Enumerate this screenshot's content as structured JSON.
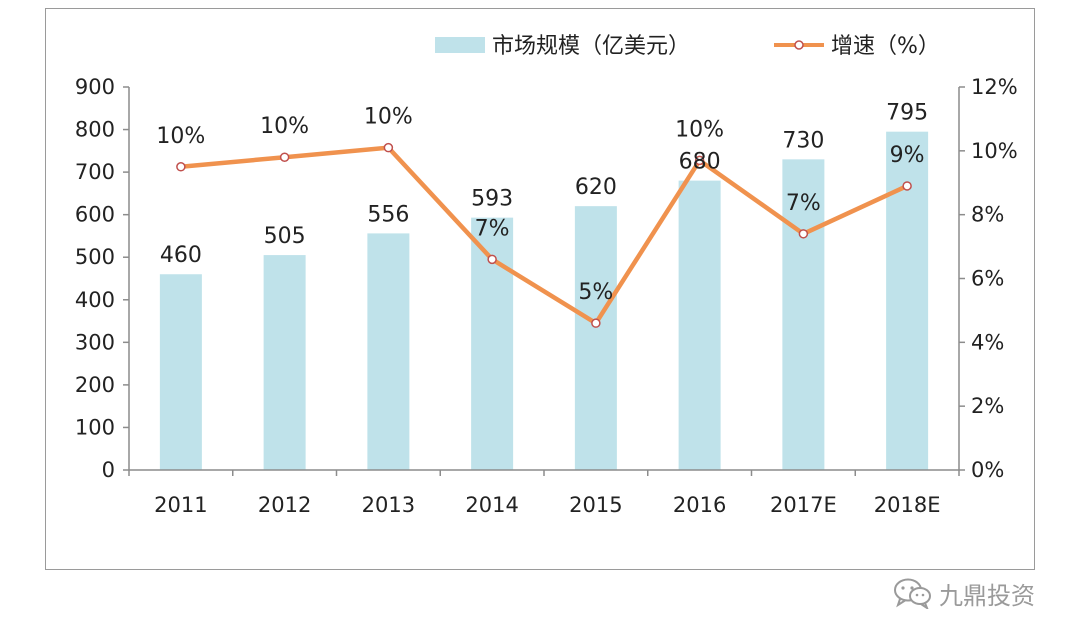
{
  "chart_data": {
    "type": "bar+line",
    "categories": [
      "2011",
      "2012",
      "2013",
      "2014",
      "2015",
      "2016",
      "2017E",
      "2018E"
    ],
    "series": [
      {
        "name": "市场规模（亿美元）",
        "type": "bar",
        "axis": "left",
        "values": [
          460,
          505,
          556,
          593,
          620,
          680,
          730,
          795
        ],
        "labels": [
          "460",
          "505",
          "556",
          "593",
          "620",
          "680",
          "730",
          "795"
        ]
      },
      {
        "name": "增速（%）",
        "type": "line",
        "axis": "right",
        "values": [
          9.5,
          9.8,
          10.1,
          6.6,
          4.6,
          9.7,
          7.4,
          8.9
        ],
        "labels": [
          "10%",
          "10%",
          "10%",
          "7%",
          "5%",
          "10%",
          "7%",
          "9%"
        ]
      }
    ],
    "left_axis": {
      "min": 0,
      "max": 900,
      "ticks": [
        "0",
        "100",
        "200",
        "300",
        "400",
        "500",
        "600",
        "700",
        "800",
        "900"
      ]
    },
    "right_axis": {
      "min": 0,
      "max": 12,
      "ticks": [
        "0%",
        "2%",
        "4%",
        "6%",
        "8%",
        "10%",
        "12%"
      ]
    },
    "legend_position": "top-right",
    "grid": false
  },
  "colors": {
    "bar": "#bfe2ea",
    "line": "#f0924e",
    "marker_edge": "#c0504d",
    "axis": "#8c8c8c"
  },
  "watermark": {
    "icon": "wechat-icon",
    "text": "九鼎投资"
  }
}
